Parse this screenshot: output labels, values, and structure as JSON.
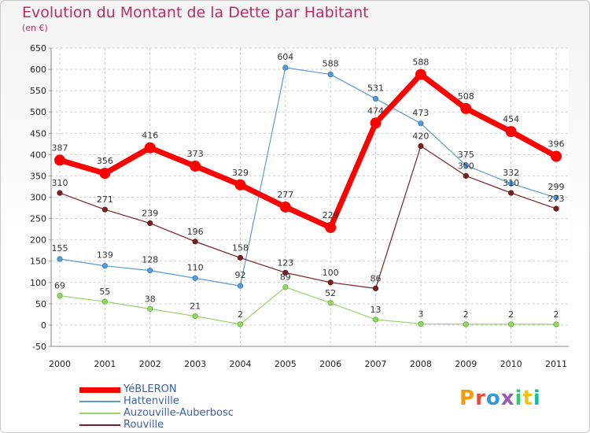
{
  "title": "Evolution du Montant de la Dette par Habitant",
  "subtitle": "(en €)",
  "logo": "Proxiti",
  "chart_data": {
    "type": "line",
    "title": "Evolution du Montant de la Dette par Habitant",
    "ylabel": "(en €)",
    "x": [
      "2000",
      "2001",
      "2002",
      "2003",
      "2004",
      "2005",
      "2006",
      "2007",
      "2008",
      "2009",
      "2010",
      "2011"
    ],
    "ylim": [
      -50,
      650
    ],
    "yticks": [
      -50,
      0,
      50,
      100,
      150,
      200,
      250,
      300,
      350,
      400,
      450,
      500,
      550,
      600,
      650
    ],
    "grid": true,
    "legend": "bottom-left",
    "series": [
      {
        "name": "YéBLERON",
        "color": "#ff0000",
        "values": [
          387,
          356,
          416,
          373,
          329,
          277,
          229,
          474,
          588,
          508,
          454,
          396
        ]
      },
      {
        "name": "Hattenville",
        "color": "#5b9bd5",
        "values": [
          155,
          139,
          128,
          110,
          92,
          604,
          588,
          531,
          473,
          375,
          332,
          299
        ]
      },
      {
        "name": "Auzouville-Auberbosc",
        "color": "#99d46b",
        "values": [
          69,
          55,
          38,
          21,
          2,
          89,
          52,
          13,
          3,
          2,
          2,
          2
        ]
      },
      {
        "name": "Rouville",
        "color": "#7a2020",
        "values": [
          310,
          271,
          239,
          196,
          158,
          123,
          100,
          86,
          420,
          350,
          310,
          273
        ]
      }
    ],
    "value_labels": [
      [
        "387",
        "356",
        "416",
        "373",
        "329",
        "277",
        "229",
        "474",
        "588",
        "508",
        "454",
        "396"
      ],
      [
        "155",
        "139",
        "128",
        "110",
        "92",
        "604",
        "588",
        "531",
        "473",
        "375",
        "332",
        "299"
      ],
      [
        "69",
        "55",
        "38",
        "21",
        "2",
        "89",
        "52",
        "13",
        "3",
        "2",
        "2",
        "2"
      ],
      [
        "310",
        "271",
        "239",
        "196",
        "158",
        "123",
        "100",
        "86",
        "420",
        "350",
        "310",
        "273"
      ]
    ]
  }
}
